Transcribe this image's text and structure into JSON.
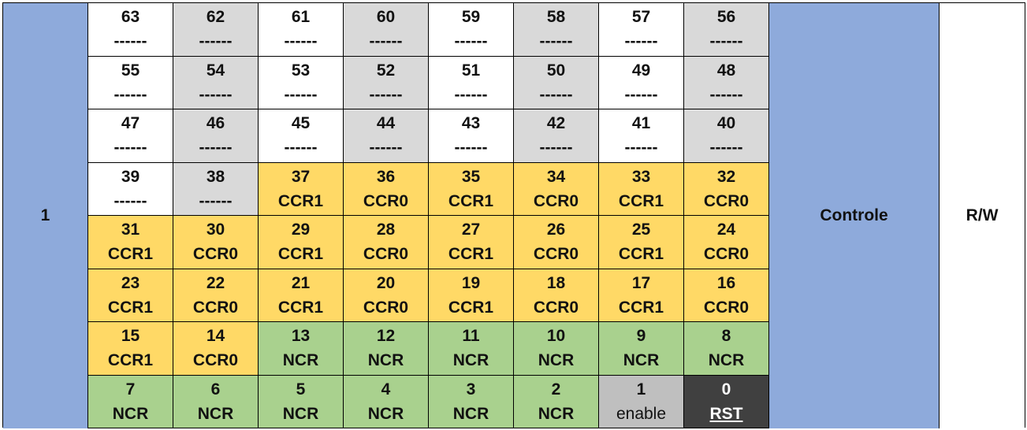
{
  "left_label": "1",
  "controle_label": "Controle",
  "rw_label": "R/W",
  "rows": [
    [
      {
        "n": "63",
        "l": "------",
        "c": "white"
      },
      {
        "n": "62",
        "l": "------",
        "c": "gray"
      },
      {
        "n": "61",
        "l": "------",
        "c": "white"
      },
      {
        "n": "60",
        "l": "------",
        "c": "gray"
      },
      {
        "n": "59",
        "l": "------",
        "c": "white"
      },
      {
        "n": "58",
        "l": "------",
        "c": "gray"
      },
      {
        "n": "57",
        "l": "------",
        "c": "white"
      },
      {
        "n": "56",
        "l": "------",
        "c": "gray"
      }
    ],
    [
      {
        "n": "55",
        "l": "------",
        "c": "white"
      },
      {
        "n": "54",
        "l": "------",
        "c": "gray"
      },
      {
        "n": "53",
        "l": "------",
        "c": "white"
      },
      {
        "n": "52",
        "l": "------",
        "c": "gray"
      },
      {
        "n": "51",
        "l": "------",
        "c": "white"
      },
      {
        "n": "50",
        "l": "------",
        "c": "gray"
      },
      {
        "n": "49",
        "l": "------",
        "c": "white"
      },
      {
        "n": "48",
        "l": "------",
        "c": "gray"
      }
    ],
    [
      {
        "n": "47",
        "l": "------",
        "c": "white"
      },
      {
        "n": "46",
        "l": "------",
        "c": "gray"
      },
      {
        "n": "45",
        "l": "------",
        "c": "white"
      },
      {
        "n": "44",
        "l": "------",
        "c": "gray"
      },
      {
        "n": "43",
        "l": "------",
        "c": "white"
      },
      {
        "n": "42",
        "l": "------",
        "c": "gray"
      },
      {
        "n": "41",
        "l": "------",
        "c": "white"
      },
      {
        "n": "40",
        "l": "------",
        "c": "gray"
      }
    ],
    [
      {
        "n": "39",
        "l": "------",
        "c": "white"
      },
      {
        "n": "38",
        "l": "------",
        "c": "gray"
      },
      {
        "n": "37",
        "l": "CCR1",
        "c": "yellow"
      },
      {
        "n": "36",
        "l": "CCR0",
        "c": "yellow"
      },
      {
        "n": "35",
        "l": "CCR1",
        "c": "yellow"
      },
      {
        "n": "34",
        "l": "CCR0",
        "c": "yellow"
      },
      {
        "n": "33",
        "l": "CCR1",
        "c": "yellow"
      },
      {
        "n": "32",
        "l": "CCR0",
        "c": "yellow"
      }
    ],
    [
      {
        "n": "31",
        "l": "CCR1",
        "c": "yellow"
      },
      {
        "n": "30",
        "l": "CCR0",
        "c": "yellow"
      },
      {
        "n": "29",
        "l": "CCR1",
        "c": "yellow"
      },
      {
        "n": "28",
        "l": "CCR0",
        "c": "yellow"
      },
      {
        "n": "27",
        "l": "CCR1",
        "c": "yellow"
      },
      {
        "n": "26",
        "l": "CCR0",
        "c": "yellow"
      },
      {
        "n": "25",
        "l": "CCR1",
        "c": "yellow"
      },
      {
        "n": "24",
        "l": "CCR0",
        "c": "yellow"
      }
    ],
    [
      {
        "n": "23",
        "l": "CCR1",
        "c": "yellow"
      },
      {
        "n": "22",
        "l": "CCR0",
        "c": "yellow"
      },
      {
        "n": "21",
        "l": "CCR1",
        "c": "yellow"
      },
      {
        "n": "20",
        "l": "CCR0",
        "c": "yellow"
      },
      {
        "n": "19",
        "l": "CCR1",
        "c": "yellow"
      },
      {
        "n": "18",
        "l": "CCR0",
        "c": "yellow"
      },
      {
        "n": "17",
        "l": "CCR1",
        "c": "yellow"
      },
      {
        "n": "16",
        "l": "CCR0",
        "c": "yellow"
      }
    ],
    [
      {
        "n": "15",
        "l": "CCR1",
        "c": "yellow"
      },
      {
        "n": "14",
        "l": "CCR0",
        "c": "yellow"
      },
      {
        "n": "13",
        "l": "NCR",
        "c": "green"
      },
      {
        "n": "12",
        "l": "NCR",
        "c": "green"
      },
      {
        "n": "11",
        "l": "NCR",
        "c": "green"
      },
      {
        "n": "10",
        "l": "NCR",
        "c": "green"
      },
      {
        "n": "9",
        "l": "NCR",
        "c": "green"
      },
      {
        "n": "8",
        "l": "NCR",
        "c": "green"
      }
    ],
    [
      {
        "n": "7",
        "l": "NCR",
        "c": "green"
      },
      {
        "n": "6",
        "l": "NCR",
        "c": "green"
      },
      {
        "n": "5",
        "l": "NCR",
        "c": "green"
      },
      {
        "n": "4",
        "l": "NCR",
        "c": "green"
      },
      {
        "n": "3",
        "l": "NCR",
        "c": "green"
      },
      {
        "n": "2",
        "l": "NCR",
        "c": "green"
      },
      {
        "n": "1",
        "l": "enable",
        "c": "midgray"
      },
      {
        "n": "0",
        "l": "RST",
        "c": "dark"
      }
    ]
  ],
  "colors": {
    "blue": "#8eaadb",
    "gray": "#d9d9d9",
    "yellow": "#ffd966",
    "green": "#a9d18e",
    "midgray": "#bfbfbf",
    "dark": "#404040"
  }
}
